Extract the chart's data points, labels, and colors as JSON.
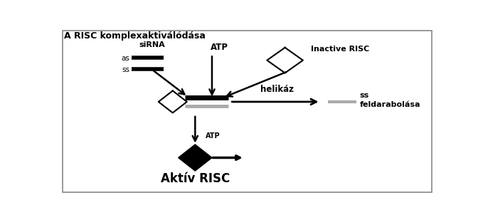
{
  "title": "A RISC komplexaktiválódása",
  "background_color": "#ffffff",
  "border_color": "#888888",
  "fig_width": 6.79,
  "fig_height": 3.09,
  "dpi": 100,
  "siRNA_label": "siRNA",
  "siRNA_as_label": "as",
  "siRNA_ss_label": "ss",
  "atp_top_label": "ATP",
  "inactive_risc_label": "Inactive RISC",
  "helikaz_label": "helikáz",
  "atp_bottom_label": "ATP",
  "ss_right_label": "ss\nfeldarabolása",
  "aktiv_risc_label": "Aktív RISC"
}
